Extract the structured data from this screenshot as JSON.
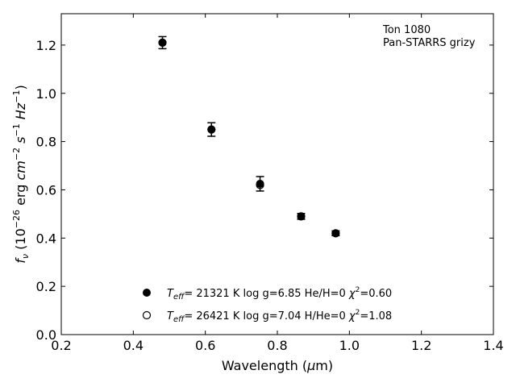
{
  "chart_data": {
    "type": "scatter",
    "xlim": [
      0.2,
      1.4
    ],
    "ylim": [
      0.0,
      1.33
    ],
    "xticks": [
      "0.2",
      "0.4",
      "0.6",
      "0.8",
      "1.0",
      "1.2",
      "1.4"
    ],
    "yticks": [
      "0.0",
      "0.2",
      "0.4",
      "0.6",
      "0.8",
      "1.0",
      "1.2"
    ],
    "xlabel_pre": "Wavelength (",
    "xlabel_mu": "μ",
    "xlabel_post": "m)",
    "ylabel_f": "f",
    "ylabel_nu": "ν",
    "ylabel_units_a": " (10",
    "ylabel_exp_a": "−26",
    "ylabel_units_b": " erg ",
    "ylabel_cm": "cm",
    "ylabel_exp_b": "−2",
    "ylabel_s": " s",
    "ylabel_exp_c": "−1",
    "ylabel_hz": " Hz",
    "ylabel_exp_d": "−1",
    "ylabel_close": ")",
    "annotation": {
      "line1": "Ton 1080",
      "line2": "Pan-STARRS grizy"
    },
    "grid": false,
    "legend_position": "lower-center",
    "series": [
      {
        "marker": "filled",
        "x": [
          0.481,
          0.617,
          0.752,
          0.866,
          0.962
        ],
        "y": [
          1.21,
          0.85,
          0.625,
          0.49,
          0.42
        ],
        "yerr": [
          0.025,
          0.028,
          0.03,
          0.012,
          0.01
        ],
        "legend": {
          "T": "T",
          "eff": "eff",
          "text1": "= 21321 K  log g=6.85  He/H=0  ",
          "chi": "χ",
          "sq": "2",
          "text2": "=0.60"
        }
      },
      {
        "marker": "open",
        "x": [
          0.481,
          0.617,
          0.752,
          0.866,
          0.962
        ],
        "y": [
          1.21,
          0.85,
          0.62,
          0.49,
          0.42
        ],
        "legend": {
          "T": "T",
          "eff": "eff",
          "text1": "= 26421 K  log g=7.04  H/He=0  ",
          "chi": "χ",
          "sq": "2",
          "text2": "=1.08"
        }
      }
    ]
  }
}
